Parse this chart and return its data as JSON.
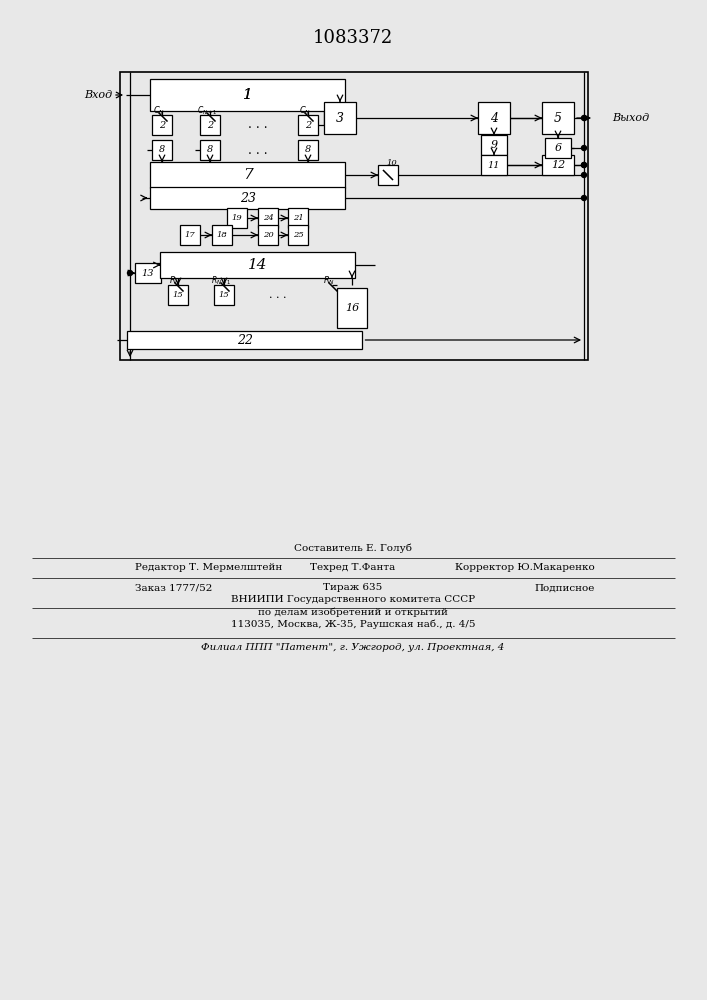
{
  "title": "1083372",
  "bg_color": "#e8e8e8",
  "line_color": "#000000",
  "box_fill": "#ffffff",
  "text_color": "#000000",
  "footer_col1_line1": "",
  "footer_col2_line1": "Составитель Е. Голуб",
  "footer_col1_line2": "Редактор Т. Мермелштейн",
  "footer_col2_line2": "Техред Т.Фанта",
  "footer_col3_line2": "Корректор Ю.Макаренко",
  "footer_zak": "Заказ 1777/52",
  "footer_tir": "Тираж 635",
  "footer_pod": "Подписное",
  "footer_vn1": "ВНИИПИ Государственного комитета СССР",
  "footer_vn2": "по делам изобретений и открытий",
  "footer_vn3": "113035, Москва, Ж-35, Раушская наб., д. 4/5",
  "footer_fil": "Филиал ППП \"Патент\", г. Ужгород, ул. Проектная, 4",
  "label_vhod": "Вход",
  "label_vyhod": "Выход"
}
